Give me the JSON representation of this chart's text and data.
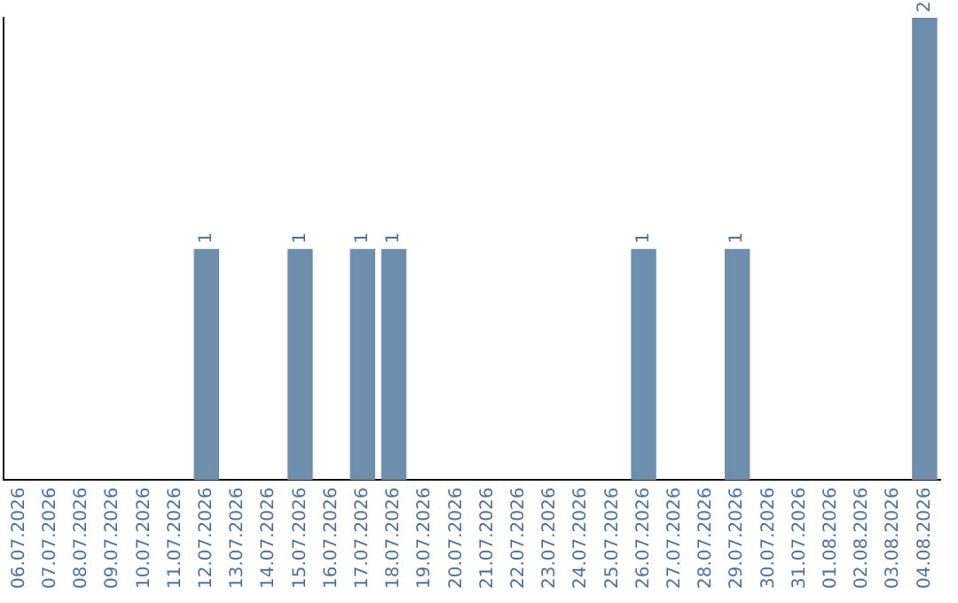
{
  "chart_data": {
    "type": "bar",
    "categories": [
      "06.07.2026",
      "07.07.2026",
      "08.07.2026",
      "09.07.2026",
      "10.07.2026",
      "11.07.2026",
      "12.07.2026",
      "13.07.2026",
      "14.07.2026",
      "15.07.2026",
      "16.07.2026",
      "17.07.2026",
      "18.07.2026",
      "19.07.2026",
      "20.07.2026",
      "21.07.2026",
      "22.07.2026",
      "23.07.2026",
      "24.07.2026",
      "25.07.2026",
      "26.07.2026",
      "27.07.2026",
      "28.07.2026",
      "29.07.2026",
      "30.07.2026",
      "31.07.2026",
      "01.08.2026",
      "02.08.2026",
      "03.08.2026",
      "04.08.2026"
    ],
    "values": [
      0,
      0,
      0,
      0,
      0,
      0,
      1,
      0,
      0,
      1,
      0,
      1,
      1,
      0,
      0,
      0,
      0,
      0,
      0,
      0,
      1,
      0,
      0,
      1,
      0,
      0,
      0,
      0,
      0,
      2
    ],
    "value_labels": [
      null,
      null,
      null,
      null,
      null,
      null,
      "1",
      null,
      null,
      "1",
      null,
      "1",
      "1",
      null,
      null,
      null,
      null,
      null,
      null,
      null,
      "1",
      null,
      null,
      "1",
      null,
      null,
      null,
      null,
      null,
      "2"
    ],
    "color": "#6d8fad",
    "ylim": [
      0,
      2
    ],
    "tick_labels": "x",
    "grid": false,
    "legend": false
  }
}
